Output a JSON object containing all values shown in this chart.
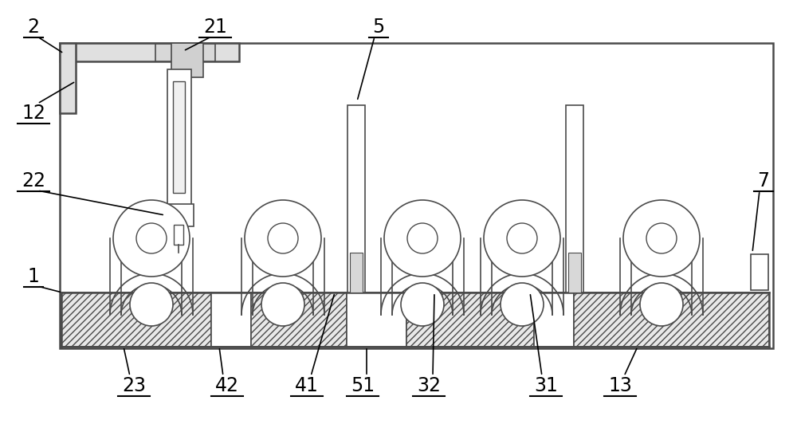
{
  "bg_color": "#ffffff",
  "lc": "#4a4a4a",
  "lw_main": 1.8,
  "lw_thin": 1.2,
  "figsize": [
    10.0,
    5.32
  ],
  "dpi": 100
}
